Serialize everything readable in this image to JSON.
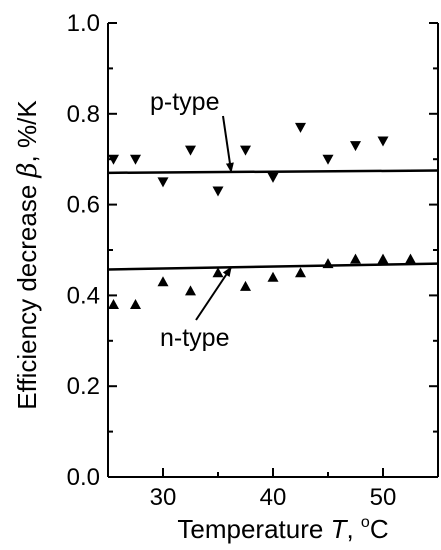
{
  "chart_data": {
    "type": "scatter",
    "xlabel": {
      "prefix": "Temperature ",
      "var": "T",
      "suffix": ", ",
      "unit_sup": "o",
      "unit": "C"
    },
    "ylabel": {
      "prefix": "Efficiency decrease ",
      "var": "β",
      "suffix": ", %/K"
    },
    "xlim": [
      25,
      55
    ],
    "ylim": [
      0,
      1.0
    ],
    "x_ticks": [
      30,
      40,
      50
    ],
    "y_ticks": [
      0.0,
      0.2,
      0.4,
      0.6,
      0.8,
      1.0
    ],
    "x_tick_labels": [
      "30",
      "40",
      "50"
    ],
    "y_tick_labels": [
      "0.0",
      "0.2",
      "0.4",
      "0.6",
      "0.8",
      "1.0"
    ],
    "series": [
      {
        "name": "p-type",
        "marker": "triangle-down",
        "points": [
          [
            25.5,
            0.7
          ],
          [
            27.5,
            0.7
          ],
          [
            30,
            0.65
          ],
          [
            32.5,
            0.72
          ],
          [
            35,
            0.63
          ],
          [
            37.5,
            0.72
          ],
          [
            40,
            0.66
          ],
          [
            42.5,
            0.77
          ],
          [
            45,
            0.7
          ],
          [
            47.5,
            0.73
          ],
          [
            50,
            0.74
          ]
        ],
        "fit": [
          [
            25,
            0.67
          ],
          [
            55,
            0.675
          ]
        ]
      },
      {
        "name": "n-type",
        "marker": "triangle-up",
        "points": [
          [
            25.5,
            0.38
          ],
          [
            27.5,
            0.38
          ],
          [
            30,
            0.43
          ],
          [
            32.5,
            0.41
          ],
          [
            35,
            0.45
          ],
          [
            37.5,
            0.42
          ],
          [
            40,
            0.44
          ],
          [
            42.5,
            0.45
          ],
          [
            45,
            0.47
          ],
          [
            47.5,
            0.48
          ],
          [
            50,
            0.48
          ],
          [
            52.5,
            0.48
          ]
        ],
        "fit": [
          [
            25,
            0.457
          ],
          [
            55,
            0.47
          ]
        ]
      }
    ],
    "annotations": [
      {
        "text": "p-type",
        "series": 0,
        "arrow_to": [
          36.2,
          0.672
        ]
      },
      {
        "text": "n-type",
        "series": 1,
        "arrow_to": [
          36.2,
          0.462
        ]
      }
    ]
  }
}
